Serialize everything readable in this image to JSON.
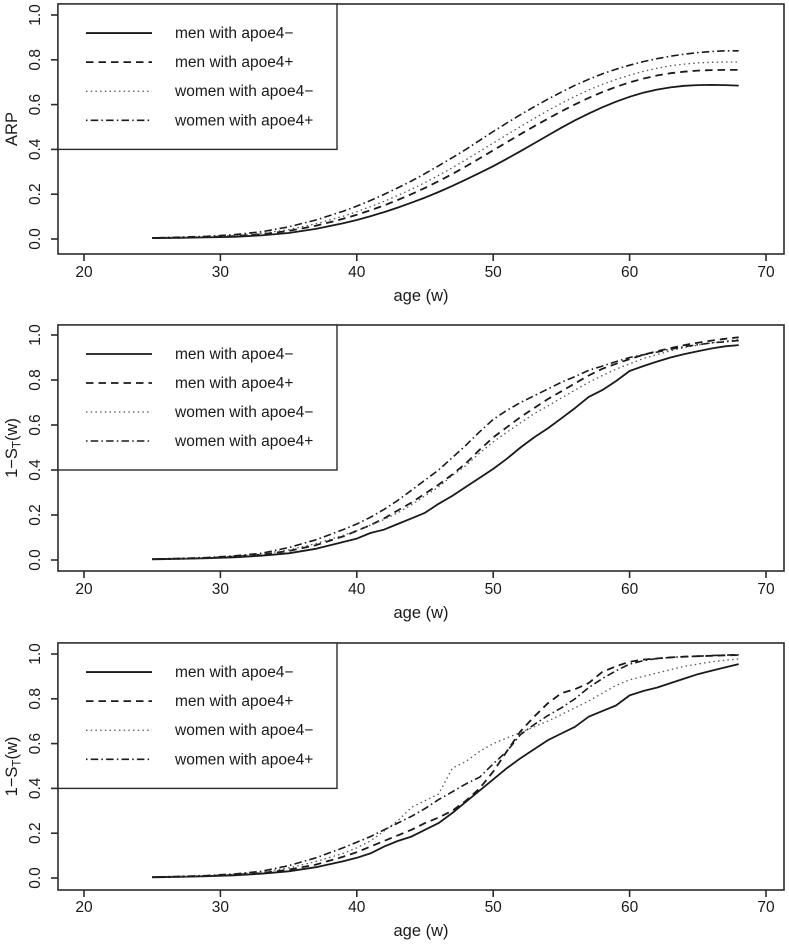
{
  "figure_title": "",
  "colors": {
    "line": "#1a1a1a",
    "dotted_line": "#555555",
    "frame": "#2b2b2b",
    "background": "#ffffff",
    "text": "#1a1a1a"
  },
  "line_styles": {
    "solid": {
      "dash": "",
      "width": 1.8,
      "color": "#1a1a1a"
    },
    "dashed": {
      "dash": "7.5 5",
      "width": 1.8,
      "color": "#1a1a1a"
    },
    "dotted": {
      "dash": "1.5 3.2",
      "width": 1.3,
      "color": "#555555"
    },
    "dashdot": {
      "dash": "1.5 3.2 7.5 3.2",
      "width": 1.6,
      "color": "#1a1a1a"
    }
  },
  "chart_data": [
    {
      "type": "line",
      "title": "",
      "xlabel": "age (w)",
      "ylabel": "ARP",
      "ylabel_parts": [
        {
          "t": "ARP",
          "sub": false
        }
      ],
      "xlim": [
        18,
        71.5
      ],
      "ylim": [
        0,
        1
      ],
      "grid": false,
      "legend_position": "top-left",
      "xticks": [
        "20",
        "30",
        "40",
        "50",
        "60",
        "70"
      ],
      "xtick_values": [
        20,
        30,
        40,
        50,
        60,
        70
      ],
      "yticks": [
        "0.0",
        "0.2",
        "0.4",
        "0.6",
        "0.8",
        "1.0"
      ],
      "ytick_values": [
        0,
        0.2,
        0.4,
        0.6,
        0.8,
        1.0
      ],
      "x": [
        25,
        27,
        29,
        31,
        33,
        35,
        37,
        39,
        40,
        41,
        42,
        43,
        44,
        45,
        46,
        47,
        48,
        49,
        50,
        51,
        52,
        53,
        54,
        55,
        56,
        57,
        58,
        59,
        60,
        61,
        62,
        63,
        64,
        65,
        66,
        67,
        68
      ],
      "series": [
        {
          "name": "men with apoe4−",
          "style": "solid",
          "values": [
            0.004,
            0.005,
            0.007,
            0.01,
            0.016,
            0.027,
            0.045,
            0.07,
            0.085,
            0.102,
            0.12,
            0.14,
            0.162,
            0.185,
            0.21,
            0.237,
            0.265,
            0.295,
            0.325,
            0.358,
            0.392,
            0.427,
            0.462,
            0.497,
            0.53,
            0.56,
            0.588,
            0.613,
            0.635,
            0.653,
            0.667,
            0.677,
            0.684,
            0.687,
            0.688,
            0.687,
            0.685
          ]
        },
        {
          "name": "men with apoe4+",
          "style": "dashed",
          "values": [
            0.005,
            0.006,
            0.009,
            0.013,
            0.021,
            0.036,
            0.059,
            0.09,
            0.108,
            0.128,
            0.15,
            0.174,
            0.2,
            0.228,
            0.258,
            0.29,
            0.324,
            0.36,
            0.396,
            0.432,
            0.468,
            0.503,
            0.537,
            0.57,
            0.601,
            0.63,
            0.656,
            0.679,
            0.699,
            0.716,
            0.73,
            0.74,
            0.747,
            0.752,
            0.754,
            0.755,
            0.755
          ]
        },
        {
          "name": "women with apoe4−",
          "style": "dotted",
          "values": [
            0.005,
            0.007,
            0.01,
            0.015,
            0.025,
            0.042,
            0.068,
            0.102,
            0.122,
            0.144,
            0.168,
            0.194,
            0.222,
            0.252,
            0.284,
            0.318,
            0.354,
            0.391,
            0.428,
            0.465,
            0.502,
            0.538,
            0.573,
            0.606,
            0.637,
            0.665,
            0.69,
            0.712,
            0.731,
            0.748,
            0.762,
            0.773,
            0.781,
            0.786,
            0.789,
            0.79,
            0.79
          ]
        },
        {
          "name": "women with apoe4+",
          "style": "dashdot",
          "values": [
            0.005,
            0.008,
            0.012,
            0.019,
            0.032,
            0.054,
            0.085,
            0.124,
            0.147,
            0.172,
            0.199,
            0.228,
            0.259,
            0.292,
            0.327,
            0.363,
            0.4,
            0.44,
            0.48,
            0.518,
            0.555,
            0.59,
            0.624,
            0.656,
            0.686,
            0.713,
            0.737,
            0.758,
            0.776,
            0.792,
            0.805,
            0.816,
            0.825,
            0.832,
            0.837,
            0.84,
            0.84
          ]
        }
      ]
    },
    {
      "type": "line",
      "title": "",
      "xlabel": "age (w)",
      "ylabel": "1−ST(w)",
      "ylabel_parts": [
        {
          "t": "1−S",
          "sub": false
        },
        {
          "t": "T",
          "sub": true
        },
        {
          "t": "(w)",
          "sub": false
        }
      ],
      "xlim": [
        18,
        71.5
      ],
      "ylim": [
        0,
        1
      ],
      "grid": false,
      "legend_position": "top-left",
      "xticks": [
        "20",
        "30",
        "40",
        "50",
        "60",
        "70"
      ],
      "xtick_values": [
        20,
        30,
        40,
        50,
        60,
        70
      ],
      "yticks": [
        "0.0",
        "0.2",
        "0.4",
        "0.6",
        "0.8",
        "1.0"
      ],
      "ytick_values": [
        0,
        0.2,
        0.4,
        0.6,
        0.8,
        1.0
      ],
      "x": [
        25,
        27,
        29,
        31,
        33,
        35,
        37,
        39,
        40,
        41,
        42,
        43,
        44,
        45,
        46,
        47,
        48,
        49,
        50,
        51,
        52,
        53,
        54,
        55,
        56,
        57,
        58,
        59,
        60,
        61,
        62,
        63,
        64,
        65,
        66,
        67,
        68
      ],
      "series": [
        {
          "name": "men with apoe4−",
          "style": "solid",
          "values": [
            0.003,
            0.005,
            0.008,
            0.012,
            0.019,
            0.03,
            0.05,
            0.08,
            0.095,
            0.12,
            0.135,
            0.16,
            0.185,
            0.21,
            0.25,
            0.285,
            0.325,
            0.365,
            0.405,
            0.45,
            0.5,
            0.545,
            0.585,
            0.63,
            0.675,
            0.725,
            0.755,
            0.795,
            0.84,
            0.862,
            0.882,
            0.9,
            0.915,
            0.928,
            0.94,
            0.95,
            0.955
          ]
        },
        {
          "name": "men with apoe4+",
          "style": "dashed",
          "values": [
            0.004,
            0.006,
            0.009,
            0.015,
            0.024,
            0.04,
            0.066,
            0.105,
            0.13,
            0.155,
            0.185,
            0.22,
            0.255,
            0.295,
            0.335,
            0.38,
            0.43,
            0.49,
            0.545,
            0.59,
            0.635,
            0.675,
            0.715,
            0.75,
            0.785,
            0.82,
            0.85,
            0.872,
            0.893,
            0.912,
            0.928,
            0.942,
            0.955,
            0.966,
            0.975,
            0.983,
            0.99
          ]
        },
        {
          "name": "women with apoe4−",
          "style": "dotted",
          "values": [
            0.004,
            0.006,
            0.01,
            0.016,
            0.026,
            0.045,
            0.073,
            0.11,
            0.13,
            0.155,
            0.18,
            0.21,
            0.245,
            0.285,
            0.325,
            0.375,
            0.42,
            0.475,
            0.525,
            0.568,
            0.61,
            0.65,
            0.685,
            0.72,
            0.755,
            0.79,
            0.82,
            0.848,
            0.872,
            0.895,
            0.913,
            0.93,
            0.944,
            0.955,
            0.965,
            0.973,
            0.98
          ]
        },
        {
          "name": "women with apoe4+",
          "style": "dashdot",
          "values": [
            0.004,
            0.007,
            0.011,
            0.018,
            0.03,
            0.055,
            0.09,
            0.135,
            0.16,
            0.19,
            0.225,
            0.265,
            0.31,
            0.355,
            0.4,
            0.455,
            0.51,
            0.57,
            0.625,
            0.665,
            0.7,
            0.73,
            0.76,
            0.79,
            0.815,
            0.843,
            0.862,
            0.882,
            0.9,
            0.912,
            0.924,
            0.937,
            0.948,
            0.957,
            0.965,
            0.97,
            0.975
          ]
        }
      ]
    },
    {
      "type": "line",
      "title": "",
      "xlabel": "age (w)",
      "ylabel": "1−ST(w)",
      "ylabel_parts": [
        {
          "t": "1−S",
          "sub": false
        },
        {
          "t": "T",
          "sub": true
        },
        {
          "t": "(w)",
          "sub": false
        }
      ],
      "xlim": [
        18,
        71.5
      ],
      "ylim": [
        0,
        1
      ],
      "grid": false,
      "legend_position": "top-left",
      "xticks": [
        "20",
        "30",
        "40",
        "50",
        "60",
        "70"
      ],
      "xtick_values": [
        20,
        30,
        40,
        50,
        60,
        70
      ],
      "yticks": [
        "0.0",
        "0.2",
        "0.4",
        "0.6",
        "0.8",
        "1.0"
      ],
      "ytick_values": [
        0,
        0.2,
        0.4,
        0.6,
        0.8,
        1.0
      ],
      "x": [
        25,
        27,
        29,
        31,
        33,
        35,
        37,
        39,
        40,
        41,
        42,
        43,
        44,
        45,
        46,
        47,
        48,
        49,
        50,
        51,
        52,
        53,
        54,
        55,
        56,
        57,
        58,
        59,
        60,
        61,
        62,
        63,
        64,
        65,
        66,
        67,
        68
      ],
      "series": [
        {
          "name": "men with apoe4−",
          "style": "solid",
          "values": [
            0.003,
            0.005,
            0.008,
            0.012,
            0.019,
            0.03,
            0.048,
            0.075,
            0.09,
            0.11,
            0.14,
            0.165,
            0.185,
            0.215,
            0.245,
            0.29,
            0.34,
            0.39,
            0.44,
            0.49,
            0.535,
            0.575,
            0.615,
            0.645,
            0.675,
            0.72,
            0.745,
            0.77,
            0.815,
            0.835,
            0.85,
            0.87,
            0.89,
            0.91,
            0.925,
            0.94,
            0.955
          ]
        },
        {
          "name": "men with apoe4+",
          "style": "dashed",
          "values": [
            0.004,
            0.006,
            0.009,
            0.014,
            0.022,
            0.037,
            0.06,
            0.095,
            0.115,
            0.14,
            0.165,
            0.19,
            0.215,
            0.245,
            0.27,
            0.3,
            0.345,
            0.4,
            0.475,
            0.565,
            0.655,
            0.72,
            0.78,
            0.825,
            0.843,
            0.87,
            0.92,
            0.945,
            0.965,
            0.975,
            0.98,
            0.985,
            0.988,
            0.99,
            0.992,
            0.994,
            0.995
          ]
        },
        {
          "name": "women with apoe4−",
          "style": "dotted",
          "values": [
            0.004,
            0.006,
            0.01,
            0.016,
            0.026,
            0.045,
            0.073,
            0.11,
            0.135,
            0.165,
            0.21,
            0.255,
            0.315,
            0.345,
            0.375,
            0.49,
            0.52,
            0.565,
            0.6,
            0.625,
            0.65,
            0.675,
            0.7,
            0.73,
            0.76,
            0.79,
            0.825,
            0.86,
            0.885,
            0.9,
            0.915,
            0.93,
            0.945,
            0.955,
            0.965,
            0.972,
            0.978
          ]
        },
        {
          "name": "women with apoe4+",
          "style": "dashdot",
          "values": [
            0.004,
            0.007,
            0.011,
            0.018,
            0.03,
            0.055,
            0.09,
            0.135,
            0.16,
            0.185,
            0.215,
            0.245,
            0.275,
            0.31,
            0.35,
            0.385,
            0.42,
            0.45,
            0.51,
            0.565,
            0.64,
            0.685,
            0.725,
            0.76,
            0.8,
            0.85,
            0.89,
            0.925,
            0.955,
            0.97,
            0.98,
            0.985,
            0.988,
            0.99,
            0.993,
            0.995,
            0.997
          ]
        }
      ]
    }
  ],
  "legend_entries": [
    "men with apoe4−",
    "men with apoe4+",
    "women with apoe4−",
    "women with apoe4+"
  ]
}
